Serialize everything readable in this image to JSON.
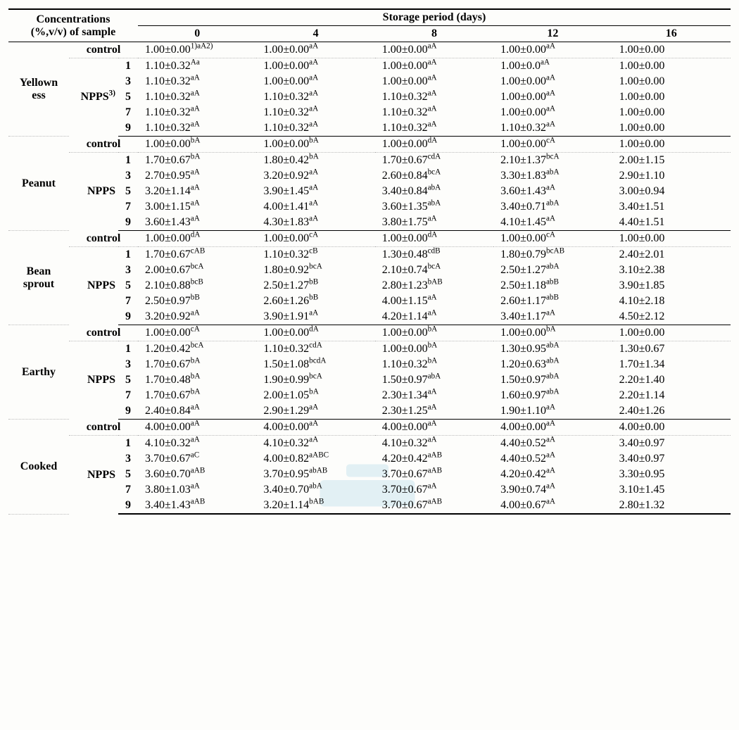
{
  "header": {
    "conc_line1": "Concentrations",
    "conc_line2": "(%,v/v) of sample",
    "storage_title": "Storage period (days)",
    "days": [
      "0",
      "4",
      "8",
      "12",
      "16"
    ]
  },
  "days": [
    "0",
    "4",
    "8",
    "12",
    "16"
  ],
  "groups": [
    {
      "attr": "Yellown\ness",
      "src_label": "NPPS",
      "src_sup": "3)",
      "rows": [
        {
          "src": "control",
          "conc": "",
          "cells": [
            {
              "v": "1.00",
              "e": "0.00",
              "s": "1)aA2)"
            },
            {
              "v": "1.00",
              "e": "0.00",
              "s": "aA"
            },
            {
              "v": "1.00",
              "e": "0.00",
              "s": "aA"
            },
            {
              "v": "1.00",
              "e": "0.00",
              "s": "aA"
            },
            {
              "v": "1.00",
              "e": "0.00",
              "s": ""
            }
          ]
        },
        {
          "conc": "1",
          "cells": [
            {
              "v": "1.10",
              "e": "0.32",
              "s": "Aa"
            },
            {
              "v": "1.00",
              "e": "0.00",
              "s": "aA"
            },
            {
              "v": "1.00",
              "e": "0.00",
              "s": "aA"
            },
            {
              "v": "1.00",
              "e": "0.0",
              "s": "aA"
            },
            {
              "v": "1.00",
              "e": "0.00",
              "s": ""
            }
          ]
        },
        {
          "conc": "3",
          "cells": [
            {
              "v": "1.10",
              "e": "0.32",
              "s": "aA"
            },
            {
              "v": "1.00",
              "e": "0.00",
              "s": "aA"
            },
            {
              "v": "1.00",
              "e": "0.00",
              "s": "aA"
            },
            {
              "v": "1.00",
              "e": "0.00",
              "s": "aA"
            },
            {
              "v": "1.00",
              "e": "0.00",
              "s": ""
            }
          ]
        },
        {
          "conc": "5",
          "cells": [
            {
              "v": "1.10",
              "e": "0.32",
              "s": "aA"
            },
            {
              "v": "1.10",
              "e": "0.32",
              "s": "aA"
            },
            {
              "v": "1.10",
              "e": "0.32",
              "s": "aA"
            },
            {
              "v": "1.00",
              "e": "0.00",
              "s": "aA"
            },
            {
              "v": "1.00",
              "e": "0.00",
              "s": ""
            }
          ]
        },
        {
          "conc": "7",
          "cells": [
            {
              "v": "1.10",
              "e": "0.32",
              "s": "aA"
            },
            {
              "v": "1.10",
              "e": "0.32",
              "s": "aA"
            },
            {
              "v": "1.10",
              "e": "0.32",
              "s": "aA"
            },
            {
              "v": "1.00",
              "e": "0.00",
              "s": "aA"
            },
            {
              "v": "1.00",
              "e": "0.00",
              "s": ""
            }
          ]
        },
        {
          "conc": "9",
          "cells": [
            {
              "v": "1.10",
              "e": "0.32",
              "s": "aA"
            },
            {
              "v": "1.10",
              "e": "0.32",
              "s": "aA"
            },
            {
              "v": "1.10",
              "e": "0.32",
              "s": "aA"
            },
            {
              "v": "1.10",
              "e": "0.32",
              "s": "aA"
            },
            {
              "v": "1.00",
              "e": "0.00",
              "s": ""
            }
          ]
        }
      ]
    },
    {
      "attr": "Peanut",
      "src_label": "NPPS",
      "src_sup": "",
      "rows": [
        {
          "src": "control",
          "conc": "",
          "cells": [
            {
              "v": "1.00",
              "e": "0.00",
              "s": "bA"
            },
            {
              "v": "1.00",
              "e": "0.00",
              "s": "bA"
            },
            {
              "v": "1.00",
              "e": "0.00",
              "s": "dA"
            },
            {
              "v": "1.00",
              "e": "0.00",
              "s": "cA"
            },
            {
              "v": "1.00",
              "e": "0.00",
              "s": ""
            }
          ]
        },
        {
          "conc": "1",
          "cells": [
            {
              "v": "1.70",
              "e": "0.67",
              "s": "bA"
            },
            {
              "v": "1.80",
              "e": "0.42",
              "s": "bA"
            },
            {
              "v": "1.70",
              "e": "0.67",
              "s": "cdA"
            },
            {
              "v": "2.10",
              "e": "1.37",
              "s": "bcA"
            },
            {
              "v": "2.00",
              "e": "1.15",
              "s": ""
            }
          ]
        },
        {
          "conc": "3",
          "cells": [
            {
              "v": "2.70",
              "e": "0.95",
              "s": "aA"
            },
            {
              "v": "3.20",
              "e": "0.92",
              "s": "aA"
            },
            {
              "v": "2.60",
              "e": "0.84",
              "s": "bcA"
            },
            {
              "v": "3.30",
              "e": "1.83",
              "s": "abA"
            },
            {
              "v": "2.90",
              "e": "1.10",
              "s": ""
            }
          ]
        },
        {
          "conc": "5",
          "cells": [
            {
              "v": "3.20",
              "e": "1.14",
              "s": "aA"
            },
            {
              "v": "3.90",
              "e": "1.45",
              "s": "aA"
            },
            {
              "v": "3.40",
              "e": "0.84",
              "s": "abA"
            },
            {
              "v": "3.60",
              "e": "1.43",
              "s": "aA"
            },
            {
              "v": "3.00",
              "e": "0.94",
              "s": ""
            }
          ]
        },
        {
          "conc": "7",
          "cells": [
            {
              "v": "3.00",
              "e": "1.15",
              "s": "aA"
            },
            {
              "v": "4.00",
              "e": "1.41",
              "s": "aA"
            },
            {
              "v": "3.60",
              "e": "1.35",
              "s": "abA"
            },
            {
              "v": "3.40",
              "e": "0.71",
              "s": "abA"
            },
            {
              "v": "3.40",
              "e": "1.51",
              "s": ""
            }
          ]
        },
        {
          "conc": "9",
          "cells": [
            {
              "v": "3.60",
              "e": "1.43",
              "s": "aA"
            },
            {
              "v": "4.30",
              "e": "1.83",
              "s": "aA"
            },
            {
              "v": "3.80",
              "e": "1.75",
              "s": "aA"
            },
            {
              "v": "4.10",
              "e": "1.45",
              "s": "aA"
            },
            {
              "v": "4.40",
              "e": "1.51",
              "s": ""
            }
          ]
        }
      ]
    },
    {
      "attr": "Bean\nsprout",
      "src_label": "NPPS",
      "src_sup": "",
      "rows": [
        {
          "src": "control",
          "conc": "",
          "cells": [
            {
              "v": "1.00",
              "e": "0.00",
              "s": "dA"
            },
            {
              "v": "1.00",
              "e": "0.00",
              "s": "cA"
            },
            {
              "v": "1.00",
              "e": "0.00",
              "s": "dA"
            },
            {
              "v": "1.00",
              "e": "0.00",
              "s": "cA"
            },
            {
              "v": "1.00",
              "e": "0.00",
              "s": ""
            }
          ]
        },
        {
          "conc": "1",
          "cells": [
            {
              "v": "1.70",
              "e": "0.67",
              "s": "cAB"
            },
            {
              "v": "1.10",
              "e": "0.32",
              "s": "cB"
            },
            {
              "v": "1.30",
              "e": "0.48",
              "s": "cdB"
            },
            {
              "v": "1.80",
              "e": "0.79",
              "s": "bcAB"
            },
            {
              "v": "2.40",
              "e": "2.01",
              "s": ""
            }
          ]
        },
        {
          "conc": "3",
          "cells": [
            {
              "v": "2.00",
              "e": "0.67",
              "s": "bcA"
            },
            {
              "v": "1.80",
              "e": "0.92",
              "s": "bcA"
            },
            {
              "v": "2.10",
              "e": "0.74",
              "s": "bcA"
            },
            {
              "v": "2.50",
              "e": "1.27",
              "s": "abA"
            },
            {
              "v": "3.10",
              "e": "2.38",
              "s": ""
            }
          ]
        },
        {
          "conc": "5",
          "cells": [
            {
              "v": "2.10",
              "e": "0.88",
              "s": "bcB"
            },
            {
              "v": "2.50",
              "e": "1.27",
              "s": "bB"
            },
            {
              "v": "2.80",
              "e": "1.23",
              "s": "bAB"
            },
            {
              "v": "2.50",
              "e": "1.18",
              "s": "abB"
            },
            {
              "v": "3.90",
              "e": "1.85",
              "s": ""
            }
          ]
        },
        {
          "conc": "7",
          "cells": [
            {
              "v": "2.50",
              "e": "0.97",
              "s": "bB"
            },
            {
              "v": "2.60",
              "e": "1.26",
              "s": "bB"
            },
            {
              "v": "4.00",
              "e": "1.15",
              "s": "aA"
            },
            {
              "v": "2.60",
              "e": "1.17",
              "s": "abB"
            },
            {
              "v": "4.10",
              "e": "2.18",
              "s": ""
            }
          ]
        },
        {
          "conc": "9",
          "cells": [
            {
              "v": "3.20",
              "e": "0.92",
              "s": "aA"
            },
            {
              "v": "3.90",
              "e": "1.91",
              "s": "aA"
            },
            {
              "v": "4.20",
              "e": "1.14",
              "s": "aA"
            },
            {
              "v": "3.40",
              "e": "1.17",
              "s": "aA"
            },
            {
              "v": "4.50",
              "e": "2.12",
              "s": ""
            }
          ]
        }
      ]
    },
    {
      "attr": "Earthy",
      "src_label": "NPPS",
      "src_sup": "",
      "rows": [
        {
          "src": "control",
          "conc": "",
          "cells": [
            {
              "v": "1.00",
              "e": "0.00",
              "s": "cA"
            },
            {
              "v": "1.00",
              "e": "0.00",
              "s": "dA"
            },
            {
              "v": "1.00",
              "e": "0.00",
              "s": "bA"
            },
            {
              "v": "1.00",
              "e": "0.00",
              "s": "bA"
            },
            {
              "v": "1.00",
              "e": "0.00",
              "s": ""
            }
          ]
        },
        {
          "conc": "1",
          "cells": [
            {
              "v": "1.20",
              "e": "0.42",
              "s": "bcA"
            },
            {
              "v": "1.10",
              "e": "0.32",
              "s": "cdA"
            },
            {
              "v": "1.00",
              "e": "0.00",
              "s": "bA"
            },
            {
              "v": "1.30",
              "e": "0.95",
              "s": "abA"
            },
            {
              "v": "1.30",
              "e": "0.67",
              "s": ""
            }
          ]
        },
        {
          "conc": "3",
          "cells": [
            {
              "v": "1.70",
              "e": "0.67",
              "s": "bA"
            },
            {
              "v": "1.50",
              "e": "1.08",
              "s": "bcdA"
            },
            {
              "v": "1.10",
              "e": "0.32",
              "s": "bA"
            },
            {
              "v": "1.20",
              "e": "0.63",
              "s": "abA"
            },
            {
              "v": "1.70",
              "e": "1.34",
              "s": ""
            }
          ]
        },
        {
          "conc": "5",
          "cells": [
            {
              "v": "1.70",
              "e": "0.48",
              "s": "bA"
            },
            {
              "v": "1.90",
              "e": "0.99",
              "s": "bcA"
            },
            {
              "v": "1.50",
              "e": "0.97",
              "s": "abA"
            },
            {
              "v": "1.50",
              "e": "0.97",
              "s": "abA"
            },
            {
              "v": "2.20",
              "e": "1.40",
              "s": ""
            }
          ]
        },
        {
          "conc": "7",
          "cells": [
            {
              "v": "1.70",
              "e": "0.67",
              "s": "bA"
            },
            {
              "v": "2.00",
              "e": "1.05",
              "s": "bA"
            },
            {
              "v": "2.30",
              "e": "1.34",
              "s": "aA"
            },
            {
              "v": "1.60",
              "e": "0.97",
              "s": "abA"
            },
            {
              "v": "2.20",
              "e": "1.14",
              "s": ""
            }
          ]
        },
        {
          "conc": "9",
          "cells": [
            {
              "v": "2.40",
              "e": "0.84",
              "s": "aA"
            },
            {
              "v": "2.90",
              "e": "1.29",
              "s": "aA"
            },
            {
              "v": "2.30",
              "e": "1.25",
              "s": "aA"
            },
            {
              "v": "1.90",
              "e": "1.10",
              "s": "aA"
            },
            {
              "v": "2.40",
              "e": "1.26",
              "s": ""
            }
          ]
        }
      ]
    },
    {
      "attr": "Cooked",
      "src_label": "NPPS",
      "src_sup": "",
      "rows": [
        {
          "src": "control",
          "conc": "",
          "cells": [
            {
              "v": "4.00",
              "e": "0.00",
              "s": "aA"
            },
            {
              "v": "4.00",
              "e": "0.00",
              "s": "aA"
            },
            {
              "v": "4.00",
              "e": "0.00",
              "s": "aA"
            },
            {
              "v": "4.00",
              "e": "0.00",
              "s": "aA"
            },
            {
              "v": "4.00",
              "e": "0.00",
              "s": ""
            }
          ]
        },
        {
          "conc": "1",
          "cells": [
            {
              "v": "4.10",
              "e": "0.32",
              "s": "aA"
            },
            {
              "v": "4.10",
              "e": "0.32",
              "s": "aA"
            },
            {
              "v": "4.10",
              "e": "0.32",
              "s": "aA"
            },
            {
              "v": "4.40",
              "e": "0.52",
              "s": "aA"
            },
            {
              "v": "3.40",
              "e": "0.97",
              "s": ""
            }
          ]
        },
        {
          "conc": "3",
          "cells": [
            {
              "v": "3.70",
              "e": "0.67",
              "s": "aC"
            },
            {
              "v": "4.00",
              "e": "0.82",
              "s": "aABC"
            },
            {
              "v": "4.20",
              "e": "0.42",
              "s": "aAB"
            },
            {
              "v": "4.40",
              "e": "0.52",
              "s": "aA"
            },
            {
              "v": "3.40",
              "e": "0.97",
              "s": ""
            }
          ]
        },
        {
          "conc": "5",
          "cells": [
            {
              "v": "3.60",
              "e": "0.70",
              "s": "aAB"
            },
            {
              "v": "3.70",
              "e": "0.95",
              "s": "abAB"
            },
            {
              "v": "3.70",
              "e": "0.67",
              "s": "aAB"
            },
            {
              "v": "4.20",
              "e": "0.42",
              "s": "aA"
            },
            {
              "v": "3.30",
              "e": "0.95",
              "s": ""
            }
          ]
        },
        {
          "conc": "7",
          "cells": [
            {
              "v": "3.80",
              "e": "1.03",
              "s": "aA"
            },
            {
              "v": "3.40",
              "e": "0.70",
              "s": "abA"
            },
            {
              "v": "3.70",
              "e": "0.67",
              "s": "aA"
            },
            {
              "v": "3.90",
              "e": "0.74",
              "s": "aA"
            },
            {
              "v": "3.10",
              "e": "1.45",
              "s": ""
            }
          ]
        },
        {
          "conc": "9",
          "cells": [
            {
              "v": "3.40",
              "e": "1.43",
              "s": "aAB"
            },
            {
              "v": "3.20",
              "e": "1.14",
              "s": "bAB"
            },
            {
              "v": "3.70",
              "e": "0.67",
              "s": "aAB"
            },
            {
              "v": "4.00",
              "e": "0.67",
              "s": "aA"
            },
            {
              "v": "2.80",
              "e": "1.32",
              "s": ""
            }
          ]
        }
      ]
    }
  ],
  "style": {
    "font_family": "Times New Roman",
    "font_size_pt": 12,
    "text_color": "#000000",
    "background_color": "#fdfdfb",
    "border_heavy": "2px solid #000",
    "border_light": "1px solid #000",
    "border_dotted": "1px dotted #bbbbbb",
    "watermark_color": "#6fb8d8",
    "watermark_opacity": 0.18,
    "plusminus": "±"
  }
}
